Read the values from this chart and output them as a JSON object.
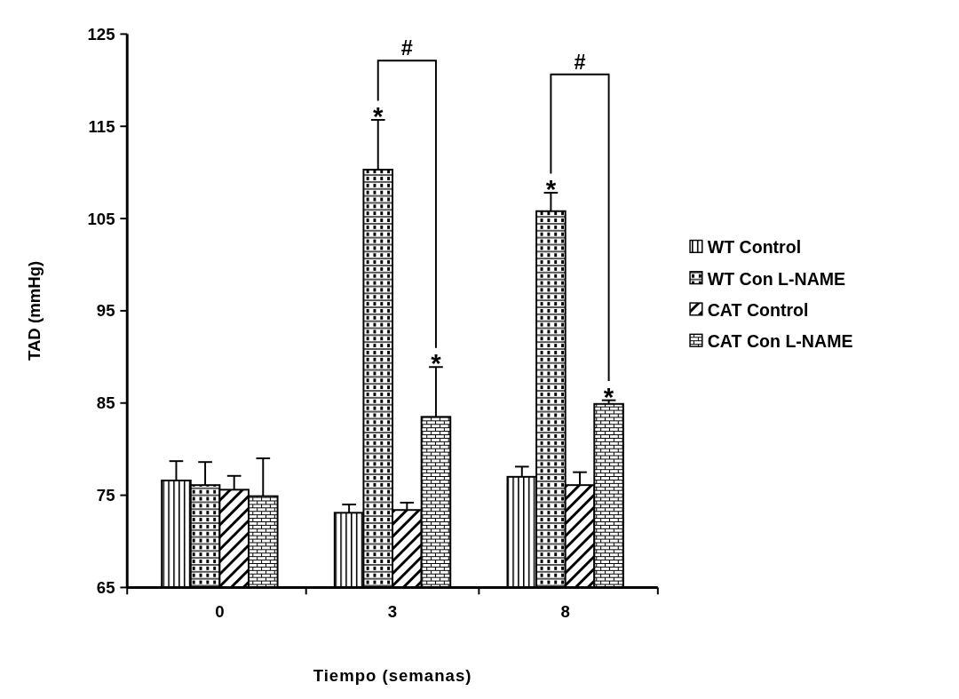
{
  "chart_data": {
    "type": "bar",
    "xlabel": "Tiempo (semanas)",
    "ylabel": "TAD (mmHg)",
    "categories": [
      "0",
      "3",
      "8"
    ],
    "series": [
      {
        "name": "WT Control",
        "color": "#000000",
        "values": [
          76.6,
          73.1,
          77.0
        ],
        "errors": [
          2.1,
          0.9,
          1.1
        ]
      },
      {
        "name": "WT Con L-NAME",
        "color": "#000000",
        "values": [
          76.1,
          110.3,
          105.8
        ],
        "errors": [
          2.5,
          5.4,
          2.0
        ]
      },
      {
        "name": "CAT Control",
        "color": "#000000",
        "values": [
          75.6,
          73.4,
          76.1
        ],
        "errors": [
          1.5,
          0.8,
          1.4
        ]
      },
      {
        "name": "CAT Con L-NAME",
        "color": "#000000",
        "values": [
          74.9,
          83.5,
          84.9
        ],
        "errors": [
          4.1,
          5.4,
          0.4
        ]
      }
    ],
    "ylim": [
      65,
      125
    ],
    "yticks": [
      65,
      75,
      85,
      95,
      105,
      115,
      125
    ],
    "grid": false,
    "legend": "right",
    "annotations": [
      "*",
      "*",
      "*",
      "*",
      "#",
      "#"
    ]
  }
}
